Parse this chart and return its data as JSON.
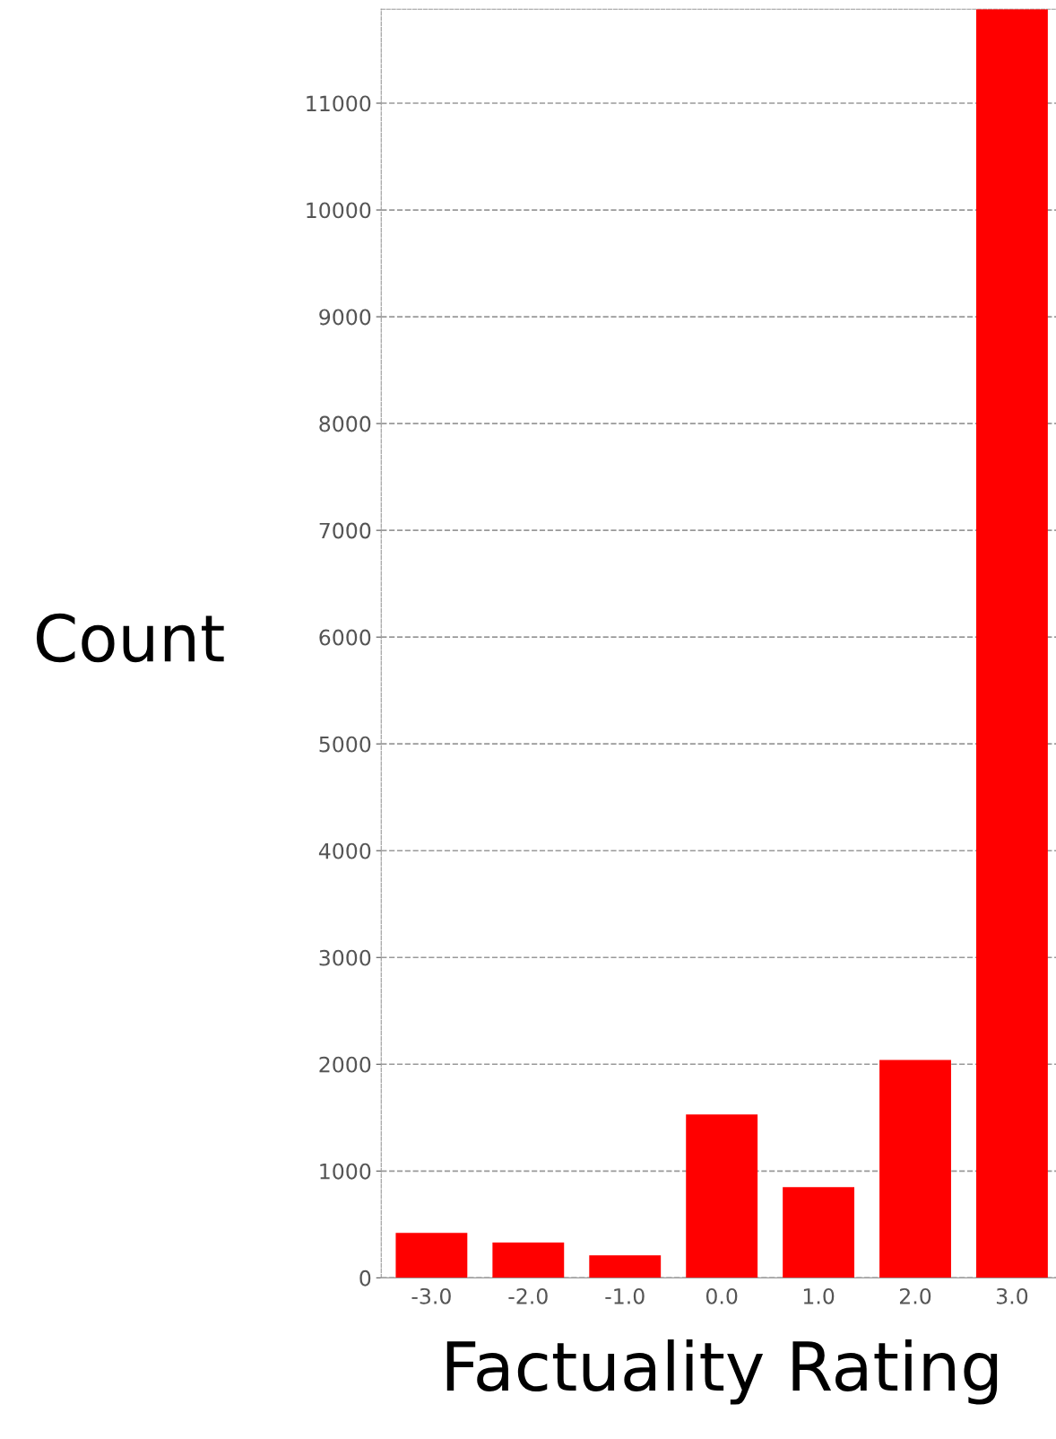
{
  "chart_data": {
    "type": "bar",
    "xlabel": "Factuality Rating",
    "ylabel": "Count",
    "categories": [
      "-3.0",
      "-2.0",
      "-1.0",
      "0.0",
      "1.0",
      "2.0",
      "3.0"
    ],
    "values": [
      420,
      330,
      210,
      1530,
      850,
      2040,
      11880
    ],
    "color": "#ff0000",
    "ylim": [
      0,
      11880
    ],
    "yticks": [
      0,
      1000,
      2000,
      3000,
      4000,
      5000,
      6000,
      7000,
      8000,
      9000,
      10000,
      11000
    ],
    "grid": "y"
  }
}
